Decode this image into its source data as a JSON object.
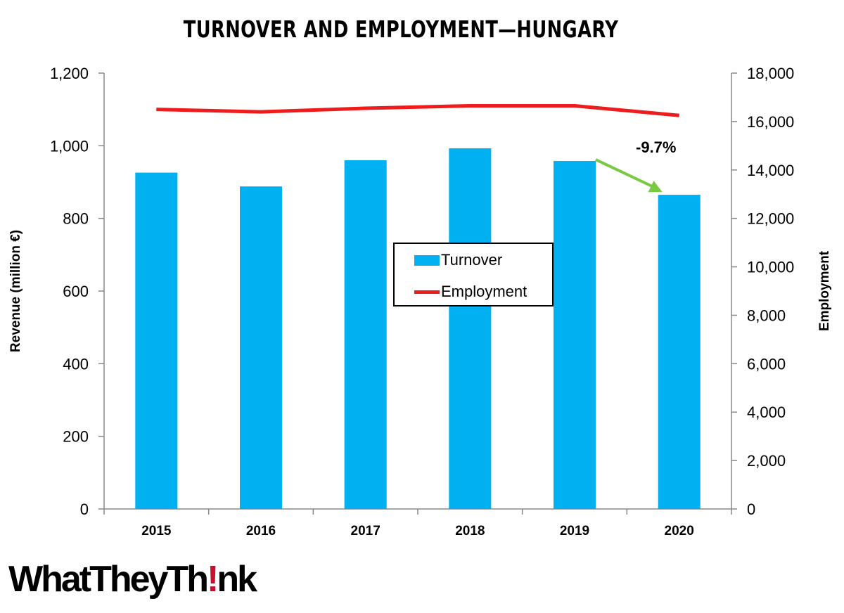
{
  "chart_data": {
    "type": "bar",
    "title": "TURNOVER AND EMPLOYMENT—HUNGARY",
    "categories": [
      "2015",
      "2016",
      "2017",
      "2018",
      "2019",
      "2020"
    ],
    "series": [
      {
        "name": "Turnover",
        "type": "bar",
        "axis": "left",
        "color": "#00b0f0",
        "values": [
          926,
          888,
          960,
          993,
          958,
          865
        ]
      },
      {
        "name": "Employment",
        "type": "line",
        "axis": "right",
        "color": "#ee1c1c",
        "values": [
          16500,
          16400,
          16550,
          16650,
          16650,
          16250
        ]
      }
    ],
    "ylabel": "Revenue (million €)",
    "y2label": "Employment",
    "ylim": [
      0,
      1200
    ],
    "y2lim": [
      0,
      18000
    ],
    "yticks": [
      "0",
      "200",
      "400",
      "600",
      "800",
      "1,000",
      "1,200"
    ],
    "y2ticks": [
      "0",
      "2,000",
      "4,000",
      "6,000",
      "8,000",
      "10,000",
      "12,000",
      "14,000",
      "16,000",
      "18,000"
    ],
    "legend_position": "center",
    "annotation": {
      "text": "-9.7%",
      "from_category": "2019",
      "to_category": "2020",
      "arrow_color": "#7ac943"
    }
  },
  "logo": {
    "text_before": "WhatTheyTh",
    "bang": "!",
    "text_after": "nk"
  }
}
